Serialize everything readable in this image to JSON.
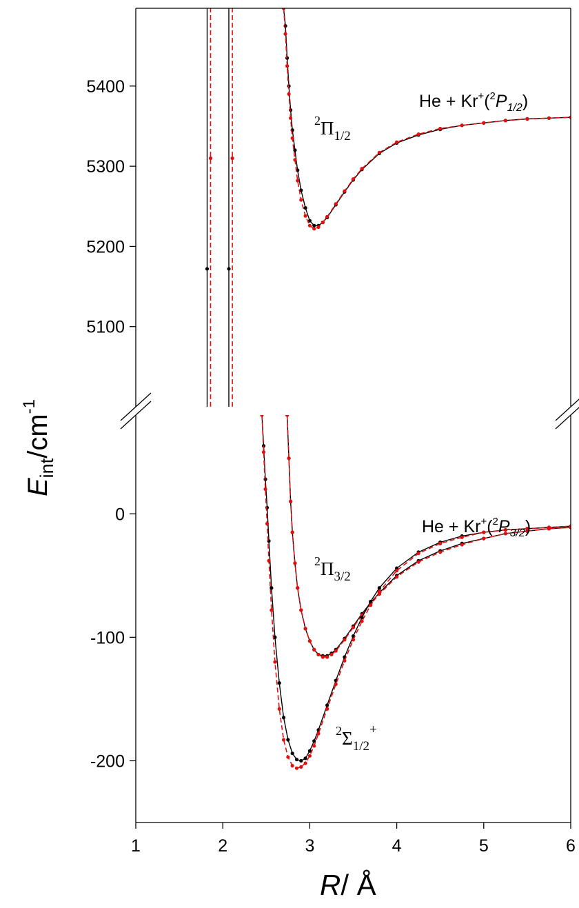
{
  "chart_data": {
    "type": "line",
    "xlabel": {
      "main": "R",
      "unit": "/ Å"
    },
    "ylabel": {
      "main": "E",
      "sub": "int",
      "rest": "/cm",
      "sup": "-1"
    },
    "xlim": [
      1,
      6
    ],
    "x_ticks": [
      "1",
      "2",
      "3",
      "4",
      "5",
      "6"
    ],
    "broken_y_axis": true,
    "upper_panel": {
      "ylim": [
        5000,
        5497
      ],
      "y_ticks": [
        "5100",
        "5200",
        "5300",
        "5400"
      ]
    },
    "lower_panel": {
      "ylim": [
        -250,
        80
      ],
      "y_ticks": [
        "-200",
        "-100",
        "0"
      ]
    },
    "series_colors": {
      "black": "#000000",
      "red": "#e01010"
    },
    "annotations": {
      "pi12": {
        "sup": "2",
        "main": "Π",
        "sub": "1/2"
      },
      "pi32": {
        "sup": "2",
        "main": "Π",
        "sub": "3/2"
      },
      "sigma": {
        "sup": "2",
        "main": "Σ",
        "sub": "1/2",
        "sup2": "+"
      },
      "asym_upper": {
        "prefix": "He + Kr",
        "plus": "+",
        "open": "(",
        "sup": "2",
        "P": "P",
        "sub": "1/2",
        "close": ")"
      },
      "asym_lower": {
        "prefix": "He + Kr",
        "plus": "+",
        "open": "(",
        "sup": "2",
        "P": "P",
        "sub": "3/2",
        "close": ")"
      }
    },
    "series": [
      {
        "panel": "upper",
        "style": "solid",
        "color": "black",
        "x": [
          2.7,
          2.72,
          2.74,
          2.76,
          2.78,
          2.8,
          2.83,
          2.86,
          2.9,
          2.95,
          3.0,
          3.05,
          3.1,
          3.15,
          3.2,
          3.3,
          3.4,
          3.5,
          3.6,
          3.8,
          4.0,
          4.25,
          4.5,
          4.75,
          5.0,
          5.25,
          5.5,
          5.75,
          6.0
        ],
        "y": [
          5497,
          5475,
          5435,
          5400,
          5370,
          5345,
          5320,
          5295,
          5270,
          5248,
          5232,
          5226,
          5226,
          5230,
          5236,
          5252,
          5268,
          5283,
          5296,
          5316,
          5329,
          5339,
          5346,
          5351,
          5354,
          5357,
          5359,
          5360,
          5361
        ]
      },
      {
        "panel": "upper",
        "style": "dashed",
        "color": "red",
        "x": [
          2.7,
          2.72,
          2.74,
          2.76,
          2.78,
          2.8,
          2.83,
          2.86,
          2.9,
          2.95,
          3.0,
          3.05,
          3.1,
          3.15,
          3.2,
          3.3,
          3.4,
          3.5,
          3.6,
          3.8,
          4.0,
          4.25,
          4.5,
          4.75,
          5.0,
          5.25,
          5.5,
          5.75,
          6.0
        ],
        "y": [
          5497,
          5465,
          5425,
          5390,
          5360,
          5335,
          5308,
          5282,
          5258,
          5238,
          5226,
          5222,
          5224,
          5230,
          5237,
          5253,
          5269,
          5284,
          5297,
          5317,
          5330,
          5340,
          5347,
          5351,
          5354,
          5357,
          5359,
          5360,
          5361
        ]
      },
      {
        "panel": "lower",
        "style": "solid",
        "color": "black",
        "x": [
          2.74,
          2.76,
          2.78,
          2.8,
          2.83,
          2.86,
          2.9,
          2.95,
          3.0,
          3.05,
          3.1,
          3.15,
          3.2,
          3.25,
          3.3,
          3.4,
          3.5,
          3.6,
          3.7,
          3.8,
          4.0,
          4.25,
          4.5,
          4.75,
          5.0,
          5.25,
          5.5,
          5.75,
          6.0
        ],
        "y": [
          80,
          45,
          10,
          -15,
          -40,
          -60,
          -78,
          -93,
          -103,
          -110,
          -114,
          -115,
          -115,
          -113,
          -110,
          -101,
          -91,
          -81,
          -72,
          -64,
          -50,
          -38,
          -30,
          -24,
          -20,
          -16,
          -14,
          -12,
          -11
        ]
      },
      {
        "panel": "lower",
        "style": "dashed",
        "color": "red",
        "x": [
          2.74,
          2.76,
          2.78,
          2.8,
          2.83,
          2.86,
          2.9,
          2.95,
          3.0,
          3.05,
          3.1,
          3.15,
          3.2,
          3.25,
          3.3,
          3.4,
          3.5,
          3.6,
          3.7,
          3.8,
          4.0,
          4.25,
          4.5,
          4.75,
          5.0,
          5.25,
          5.5,
          5.75,
          6.0
        ],
        "y": [
          80,
          45,
          10,
          -15,
          -40,
          -60,
          -78,
          -93,
          -103,
          -110,
          -114,
          -116,
          -116,
          -114,
          -111,
          -102,
          -92,
          -82,
          -73,
          -65,
          -51,
          -39,
          -31,
          -25,
          -20,
          -16,
          -14,
          -12,
          -11
        ]
      },
      {
        "panel": "lower",
        "style": "solid",
        "color": "black",
        "x": [
          2.45,
          2.47,
          2.49,
          2.51,
          2.53,
          2.56,
          2.6,
          2.65,
          2.7,
          2.75,
          2.8,
          2.85,
          2.9,
          2.95,
          3.0,
          3.05,
          3.1,
          3.2,
          3.3,
          3.4,
          3.5,
          3.6,
          3.7,
          3.8,
          4.0,
          4.25,
          4.5,
          4.75,
          5.0,
          5.25,
          5.5,
          5.75,
          6.0
        ],
        "y": [
          80,
          55,
          28,
          5,
          -22,
          -60,
          -100,
          -137,
          -165,
          -183,
          -194,
          -199,
          -200,
          -198,
          -192,
          -184,
          -175,
          -155,
          -135,
          -116,
          -99,
          -84,
          -71,
          -60,
          -44,
          -31,
          -23,
          -18,
          -15,
          -13,
          -12,
          -11,
          -10
        ]
      },
      {
        "panel": "lower",
        "style": "dashed",
        "color": "red",
        "x": [
          2.45,
          2.47,
          2.49,
          2.51,
          2.53,
          2.56,
          2.6,
          2.65,
          2.7,
          2.75,
          2.8,
          2.85,
          2.9,
          2.95,
          3.0,
          3.05,
          3.1,
          3.2,
          3.3,
          3.4,
          3.5,
          3.6,
          3.7,
          3.8,
          4.0,
          4.25,
          4.5,
          4.75,
          5.0,
          5.25,
          5.5,
          5.75,
          6.0
        ],
        "y": [
          80,
          50,
          20,
          -8,
          -38,
          -78,
          -120,
          -158,
          -183,
          -197,
          -204,
          -206,
          -205,
          -202,
          -196,
          -188,
          -178,
          -158,
          -138,
          -119,
          -102,
          -87,
          -74,
          -63,
          -46,
          -32,
          -24,
          -19,
          -15,
          -13,
          -12,
          -11,
          -10
        ]
      },
      {
        "panel": "upper",
        "style": "solid",
        "color": "black",
        "off_scale": true,
        "x": [
          1.82,
          1.82
        ],
        "y": [
          5000,
          5497
        ]
      },
      {
        "panel": "upper",
        "style": "dashed",
        "color": "red",
        "off_scale": true,
        "x": [
          1.86,
          1.86
        ],
        "y": [
          5000,
          5497
        ]
      },
      {
        "panel": "upper",
        "style": "solid",
        "color": "black",
        "off_scale": true,
        "x": [
          2.07,
          2.07
        ],
        "y": [
          5000,
          5497
        ]
      },
      {
        "panel": "upper",
        "style": "dashed",
        "color": "red",
        "off_scale": true,
        "x": [
          2.11,
          2.11
        ],
        "y": [
          5000,
          5497
        ]
      }
    ],
    "legend": "none",
    "grid": false
  }
}
